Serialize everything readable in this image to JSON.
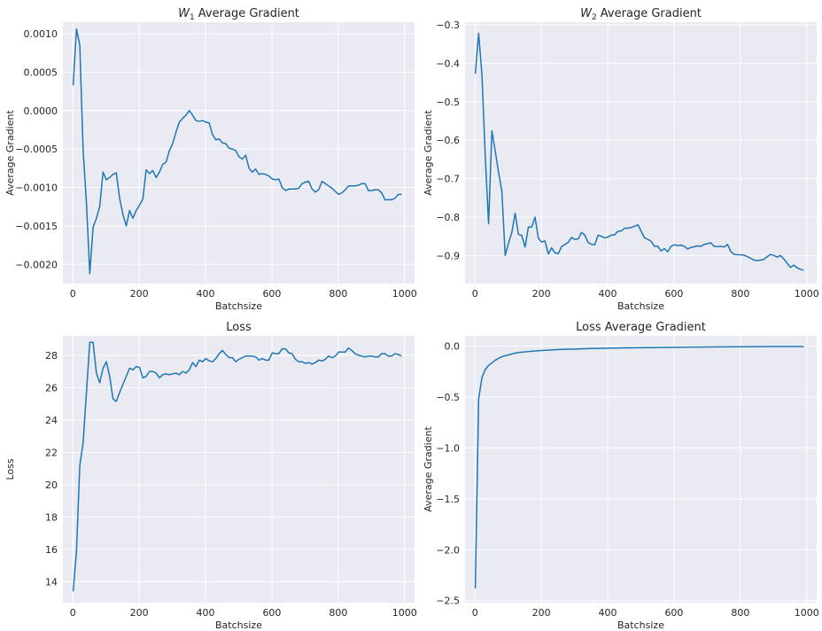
{
  "chart_data": [
    {
      "type": "line",
      "title": "W₁ Average Gradient",
      "title_main": "W",
      "title_sub": "1",
      "title_rest": " Average Gradient",
      "xlabel": "Batchsize",
      "ylabel": "Average Gradient",
      "xlim": [
        -30,
        1030
      ],
      "ylim": [
        -0.00225,
        0.00115
      ],
      "xticks": [
        0,
        200,
        400,
        600,
        800,
        1000
      ],
      "xtick_labels": [
        "0",
        "200",
        "400",
        "600",
        "800",
        "1000"
      ],
      "yticks": [
        -0.002,
        -0.0015,
        -0.001,
        -0.0005,
        0.0,
        0.0005,
        0.001
      ],
      "ytick_labels": [
        "−0.0020",
        "−0.0015",
        "−0.0010",
        "−0.0005",
        "0.0000",
        "0.0005",
        "0.0010"
      ],
      "grid": true,
      "color": "#1f77b4",
      "series": [
        {
          "x": [
            1,
            11,
            21,
            31,
            41,
            51,
            61,
            71,
            81,
            91,
            101,
            111,
            121,
            131,
            141,
            151,
            161,
            171,
            181,
            191,
            201,
            211,
            221,
            231,
            241,
            251,
            261,
            271,
            281,
            291,
            301,
            311,
            321,
            331,
            341,
            351,
            361,
            371,
            381,
            391,
            401,
            411,
            421,
            431,
            441,
            451,
            461,
            471,
            481,
            491,
            501,
            511,
            521,
            531,
            541,
            551,
            561,
            571,
            581,
            591,
            601,
            611,
            621,
            631,
            641,
            651,
            661,
            671,
            681,
            691,
            701,
            711,
            721,
            731,
            741,
            751,
            761,
            771,
            781,
            791,
            801,
            811,
            821,
            831,
            841,
            851,
            861,
            871,
            881,
            891,
            901,
            911,
            921,
            931,
            941,
            951,
            961,
            971,
            981,
            991
          ],
          "values": [
            0.00033,
            0.00106,
            0.00085,
            -0.00052,
            -0.0012,
            -0.00212,
            -0.00152,
            -0.0014,
            -0.00125,
            -0.0008,
            -0.0009,
            -0.00087,
            -0.00083,
            -0.00081,
            -0.00114,
            -0.00135,
            -0.0015,
            -0.0013,
            -0.0014,
            -0.0013,
            -0.00123,
            -0.00115,
            -0.00077,
            -0.00082,
            -0.00078,
            -0.00087,
            -0.0008,
            -0.0007,
            -0.00067,
            -0.00052,
            -0.00043,
            -0.00028,
            -0.00015,
            -0.0001,
            -6e-05,
            0.0,
            -6e-05,
            -0.00013,
            -0.00014,
            -0.00013,
            -0.00015,
            -0.00016,
            -0.00031,
            -0.00038,
            -0.00037,
            -0.00042,
            -0.00043,
            -0.00049,
            -0.0005,
            -0.00052,
            -0.0006,
            -0.00063,
            -0.00058,
            -0.00075,
            -0.0008,
            -0.00076,
            -0.00083,
            -0.00082,
            -0.00083,
            -0.00085,
            -0.00089,
            -0.0009,
            -0.00089,
            -0.001,
            -0.00104,
            -0.00102,
            -0.00102,
            -0.00102,
            -0.00101,
            -0.00095,
            -0.00093,
            -0.00092,
            -0.00102,
            -0.00106,
            -0.00103,
            -0.00092,
            -0.00095,
            -0.00098,
            -0.00101,
            -0.00105,
            -0.00109,
            -0.00107,
            -0.00103,
            -0.00098,
            -0.00098,
            -0.00098,
            -0.00097,
            -0.00095,
            -0.00095,
            -0.00104,
            -0.00104,
            -0.00103,
            -0.00103,
            -0.00107,
            -0.00116,
            -0.00116,
            -0.00116,
            -0.00114,
            -0.00109,
            -0.00109
          ]
        }
      ]
    },
    {
      "type": "line",
      "title": "W₂ Average Gradient",
      "title_main": "W",
      "title_sub": "2",
      "title_rest": " Average Gradient",
      "xlabel": "Batchsize",
      "ylabel": "Average Gradient",
      "xlim": [
        -30,
        1030
      ],
      "ylim": [
        -0.973,
        -0.293
      ],
      "xticks": [
        0,
        200,
        400,
        600,
        800,
        1000
      ],
      "xtick_labels": [
        "0",
        "200",
        "400",
        "600",
        "800",
        "1000"
      ],
      "yticks": [
        -0.9,
        -0.8,
        -0.7,
        -0.6,
        -0.5,
        -0.4,
        -0.3
      ],
      "ytick_labels": [
        "−0.9",
        "−0.8",
        "−0.7",
        "−0.6",
        "−0.5",
        "−0.4",
        "−0.3"
      ],
      "grid": true,
      "color": "#1f77b4",
      "series": [
        {
          "x": [
            1,
            11,
            21,
            31,
            41,
            51,
            61,
            71,
            81,
            91,
            101,
            111,
            121,
            131,
            141,
            151,
            161,
            171,
            181,
            191,
            201,
            211,
            221,
            231,
            241,
            251,
            261,
            271,
            281,
            291,
            301,
            311,
            321,
            331,
            341,
            351,
            361,
            371,
            381,
            391,
            401,
            411,
            421,
            431,
            441,
            451,
            461,
            471,
            481,
            491,
            501,
            511,
            521,
            531,
            541,
            551,
            561,
            571,
            581,
            591,
            601,
            611,
            621,
            631,
            641,
            651,
            661,
            671,
            681,
            691,
            701,
            711,
            721,
            731,
            741,
            751,
            761,
            771,
            781,
            791,
            801,
            811,
            821,
            831,
            841,
            851,
            861,
            871,
            881,
            891,
            901,
            911,
            921,
            931,
            941,
            951,
            961,
            971,
            981,
            991
          ],
          "values": [
            -0.427,
            -0.322,
            -0.43,
            -0.643,
            -0.817,
            -0.576,
            -0.628,
            -0.683,
            -0.733,
            -0.9,
            -0.868,
            -0.84,
            -0.79,
            -0.845,
            -0.848,
            -0.878,
            -0.826,
            -0.826,
            -0.8,
            -0.855,
            -0.865,
            -0.862,
            -0.896,
            -0.88,
            -0.893,
            -0.895,
            -0.877,
            -0.871,
            -0.866,
            -0.853,
            -0.858,
            -0.857,
            -0.84,
            -0.847,
            -0.866,
            -0.871,
            -0.872,
            -0.847,
            -0.85,
            -0.854,
            -0.852,
            -0.847,
            -0.846,
            -0.837,
            -0.836,
            -0.829,
            -0.829,
            -0.827,
            -0.824,
            -0.82,
            -0.837,
            -0.854,
            -0.858,
            -0.863,
            -0.876,
            -0.876,
            -0.888,
            -0.882,
            -0.89,
            -0.876,
            -0.872,
            -0.874,
            -0.873,
            -0.876,
            -0.883,
            -0.879,
            -0.877,
            -0.875,
            -0.876,
            -0.871,
            -0.869,
            -0.867,
            -0.876,
            -0.877,
            -0.876,
            -0.878,
            -0.871,
            -0.889,
            -0.897,
            -0.898,
            -0.898,
            -0.899,
            -0.903,
            -0.907,
            -0.912,
            -0.913,
            -0.912,
            -0.91,
            -0.903,
            -0.897,
            -0.9,
            -0.904,
            -0.9,
            -0.909,
            -0.92,
            -0.931,
            -0.925,
            -0.932,
            -0.936,
            -0.938
          ]
        }
      ]
    },
    {
      "type": "line",
      "title": "Loss",
      "xlabel": "Batchsize",
      "ylabel": "Loss",
      "xlim": [
        -30,
        1030
      ],
      "ylim": [
        12.7,
        29.2
      ],
      "xticks": [
        0,
        200,
        400,
        600,
        800,
        1000
      ],
      "xtick_labels": [
        "0",
        "200",
        "400",
        "600",
        "800",
        "1000"
      ],
      "yticks": [
        14,
        16,
        18,
        20,
        22,
        24,
        26,
        28
      ],
      "ytick_labels": [
        "14",
        "16",
        "18",
        "20",
        "22",
        "24",
        "26",
        "28"
      ],
      "grid": true,
      "color": "#1f77b4",
      "series": [
        {
          "x": [
            1,
            11,
            21,
            31,
            41,
            51,
            61,
            71,
            81,
            91,
            101,
            111,
            121,
            131,
            141,
            151,
            161,
            171,
            181,
            191,
            201,
            211,
            221,
            231,
            241,
            251,
            261,
            271,
            281,
            291,
            301,
            311,
            321,
            331,
            341,
            351,
            361,
            371,
            381,
            391,
            401,
            411,
            421,
            431,
            441,
            451,
            461,
            471,
            481,
            491,
            501,
            511,
            521,
            531,
            541,
            551,
            561,
            571,
            581,
            591,
            601,
            611,
            621,
            631,
            641,
            651,
            661,
            671,
            681,
            691,
            701,
            711,
            721,
            731,
            741,
            751,
            761,
            771,
            781,
            791,
            801,
            811,
            821,
            831,
            841,
            851,
            861,
            871,
            881,
            891,
            901,
            911,
            921,
            931,
            941,
            951,
            961,
            971,
            981,
            991
          ],
          "values": [
            13.4,
            15.9,
            21.2,
            22.6,
            25.7,
            28.8,
            28.8,
            26.9,
            26.3,
            27.2,
            27.6,
            26.7,
            25.3,
            25.15,
            25.7,
            26.2,
            26.7,
            27.2,
            27.1,
            27.3,
            27.25,
            26.6,
            26.7,
            27.0,
            27.0,
            26.9,
            26.6,
            26.8,
            26.85,
            26.8,
            26.85,
            26.9,
            26.8,
            27.0,
            26.9,
            27.1,
            27.55,
            27.3,
            27.7,
            27.6,
            27.8,
            27.65,
            27.6,
            27.8,
            28.1,
            28.3,
            28.05,
            27.85,
            27.85,
            27.6,
            27.75,
            27.85,
            27.95,
            27.95,
            27.95,
            27.9,
            27.7,
            27.8,
            27.7,
            27.7,
            28.15,
            28.1,
            28.1,
            28.4,
            28.4,
            28.15,
            28.1,
            27.75,
            27.6,
            27.6,
            27.5,
            27.55,
            27.45,
            27.55,
            27.7,
            27.65,
            27.75,
            27.95,
            27.85,
            27.95,
            28.2,
            28.2,
            28.2,
            28.45,
            28.3,
            28.1,
            28.0,
            27.95,
            27.9,
            27.95,
            27.95,
            27.9,
            27.9,
            28.1,
            28.1,
            27.95,
            27.95,
            28.1,
            28.05,
            27.95
          ]
        }
      ]
    },
    {
      "type": "line",
      "title": "Loss Average Gradient",
      "xlabel": "Batchsize",
      "ylabel": "Average Gradient",
      "xlim": [
        -30,
        1030
      ],
      "ylim": [
        -2.52,
        0.1
      ],
      "xticks": [
        0,
        200,
        400,
        600,
        800,
        1000
      ],
      "xtick_labels": [
        "0",
        "200",
        "400",
        "600",
        "800",
        "1000"
      ],
      "yticks": [
        -2.5,
        -2.0,
        -1.5,
        -1.0,
        -0.5,
        0.0
      ],
      "ytick_labels": [
        "−2.5",
        "−2.0",
        "−1.5",
        "−1.0",
        "−0.5",
        "0.0"
      ],
      "grid": true,
      "color": "#1f77b4",
      "series": [
        {
          "x": [
            1,
            11,
            21,
            31,
            41,
            51,
            61,
            71,
            81,
            91,
            101,
            111,
            121,
            131,
            141,
            151,
            161,
            171,
            181,
            191,
            201,
            211,
            221,
            231,
            241,
            251,
            261,
            271,
            281,
            291,
            301,
            311,
            321,
            331,
            341,
            351,
            361,
            371,
            381,
            391,
            401,
            411,
            421,
            431,
            441,
            451,
            461,
            471,
            481,
            491,
            501,
            511,
            521,
            531,
            541,
            551,
            561,
            571,
            581,
            591,
            601,
            611,
            621,
            631,
            641,
            651,
            661,
            671,
            681,
            691,
            701,
            711,
            721,
            731,
            741,
            751,
            761,
            771,
            781,
            791,
            801,
            811,
            821,
            831,
            841,
            851,
            861,
            871,
            881,
            891,
            901,
            911,
            921,
            931,
            941,
            951,
            961,
            971,
            981,
            991
          ],
          "values": [
            -2.38,
            -0.52,
            -0.31,
            -0.23,
            -0.19,
            -0.165,
            -0.14,
            -0.12,
            -0.105,
            -0.095,
            -0.087,
            -0.078,
            -0.07,
            -0.064,
            -0.06,
            -0.057,
            -0.054,
            -0.051,
            -0.048,
            -0.046,
            -0.044,
            -0.042,
            -0.04,
            -0.038,
            -0.036,
            -0.034,
            -0.033,
            -0.032,
            -0.031,
            -0.03,
            -0.029,
            -0.028,
            -0.027,
            -0.026,
            -0.025,
            -0.024,
            -0.024,
            -0.023,
            -0.022,
            -0.022,
            -0.021,
            -0.02,
            -0.02,
            -0.019,
            -0.019,
            -0.018,
            -0.018,
            -0.017,
            -0.017,
            -0.016,
            -0.016,
            -0.015,
            -0.015,
            -0.015,
            -0.014,
            -0.014,
            -0.013,
            -0.013,
            -0.013,
            -0.012,
            -0.012,
            -0.012,
            -0.011,
            -0.011,
            -0.011,
            -0.01,
            -0.01,
            -0.01,
            -0.01,
            -0.009,
            -0.009,
            -0.009,
            -0.009,
            -0.008,
            -0.008,
            -0.008,
            -0.008,
            -0.007,
            -0.007,
            -0.007,
            -0.007,
            -0.007,
            -0.006,
            -0.006,
            -0.006,
            -0.006,
            -0.006,
            -0.005,
            -0.005,
            -0.005,
            -0.005,
            -0.005,
            -0.005,
            -0.004,
            -0.004,
            -0.004,
            -0.004,
            -0.004,
            -0.004,
            -0.004
          ]
        }
      ]
    }
  ],
  "style": {
    "plot_background": "#eaeaf2",
    "grid_color": "#ffffff",
    "line_color": "#1f77b4",
    "text_color": "#262626"
  }
}
